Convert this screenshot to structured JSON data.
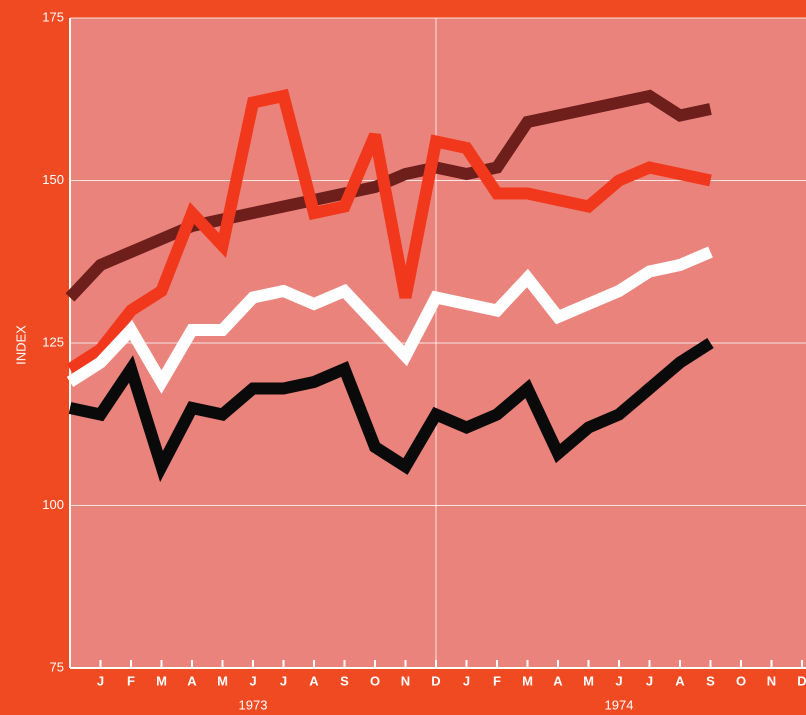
{
  "chart_data": {
    "type": "line",
    "y_label": "INDEX",
    "categories": [
      null,
      "J",
      "F",
      "M",
      "A",
      "M",
      "J",
      "J",
      "A",
      "S",
      "O",
      "N",
      "D",
      "J",
      "F",
      "M",
      "A",
      "M",
      "J",
      "J",
      "A",
      "S",
      "O",
      "N",
      "D"
    ],
    "year_labels": [
      {
        "label": "1973",
        "at": 6
      },
      {
        "label": "1974",
        "at": 18
      }
    ],
    "series": [
      {
        "color": "#6e1f1c",
        "values": [
          132,
          137,
          139,
          141,
          143,
          144,
          145,
          146,
          147,
          148,
          149,
          151,
          152,
          151,
          152,
          159,
          160,
          161,
          162,
          163,
          160,
          161,
          null,
          null,
          null
        ]
      },
      {
        "color": "#f2381c",
        "values": [
          121,
          124,
          130,
          133,
          145,
          140,
          162,
          163,
          145,
          146,
          157,
          132,
          156,
          155,
          148,
          148,
          147,
          146,
          150,
          152,
          151,
          150,
          null,
          null,
          null
        ]
      },
      {
        "color": "#ffffff",
        "values": [
          119,
          122,
          127,
          119,
          127,
          127,
          132,
          133,
          131,
          133,
          128,
          123,
          132,
          131,
          130,
          135,
          129,
          131,
          133,
          136,
          137,
          139,
          null,
          null,
          null
        ]
      },
      {
        "color": "#0a0a0a",
        "values": [
          115,
          114,
          121,
          106,
          115,
          114,
          118,
          118,
          119,
          121,
          109,
          106,
          114,
          112,
          114,
          118,
          108,
          112,
          114,
          118,
          122,
          125,
          null,
          null,
          null
        ]
      }
    ],
    "ylim": [
      75,
      175
    ],
    "yticks": [
      75,
      100,
      125,
      150,
      175
    ],
    "grid": true,
    "vline_at": 12,
    "background": "#f04a22",
    "plot_background": "#e9837b"
  }
}
